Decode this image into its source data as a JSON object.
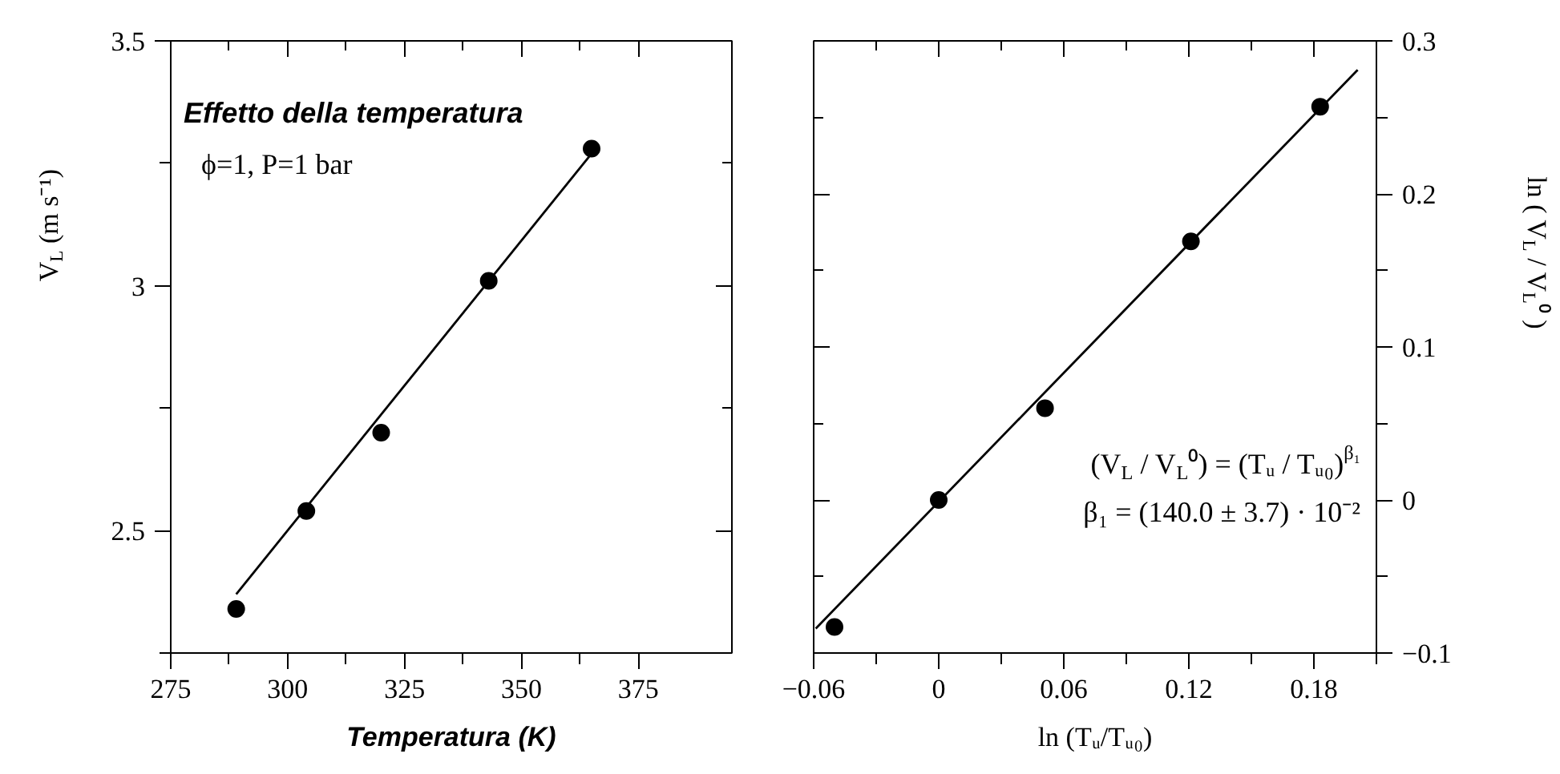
{
  "chart_data": [
    {
      "type": "scatter",
      "xlabel": "Temperatura (K)",
      "ylabel": "V$_{L}$ (m s⁻¹)",
      "annotations": [
        "Effetto della temperatura",
        "ϕ=1, P=1 bar"
      ],
      "xlim": [
        275,
        395
      ],
      "ylim": [
        2.25,
        3.5
      ],
      "xticks": [
        275,
        {
          "value": 287.5,
          "label": null
        },
        300,
        {
          "value": 312.5,
          "label": null
        },
        325,
        {
          "value": 337.5,
          "label": null
        },
        350,
        {
          "value": 362.5,
          "label": null
        },
        375
      ],
      "yticks": [
        {
          "value": 2.25,
          "label": null
        },
        2.5,
        {
          "value": 2.75,
          "label": null
        },
        3,
        {
          "value": 3.25,
          "label": null
        },
        3.5
      ],
      "series": [
        {
          "color": "#000000",
          "marker": "circle",
          "x": [
            289,
            304,
            320,
            343,
            365
          ],
          "values": [
            2.34,
            2.54,
            2.7,
            3.01,
            3.28
          ]
        },
        {
          "type": "line",
          "color": "#000000",
          "x": [
            289,
            365
          ],
          "values": [
            2.37,
            3.27
          ]
        }
      ]
    },
    {
      "type": "scatter",
      "xlabel": "ln (Tᵤ/Tᵤ₀)",
      "y2label": "ln ( V$_{L}$ / V$_{L}$⁰ )",
      "annotations": [
        "(V$_{L}$ / V$_{L}$⁰) = (Tᵤ / Tᵤ₀)$^{β₁}$",
        "β₁ = (140.0 ± 3.7) · 10⁻²"
      ],
      "xlim": [
        -0.06,
        0.21
      ],
      "y2lim": [
        -0.1,
        0.3
      ],
      "xticks": [
        {
          "value": -0.06,
          "label": "−0.06"
        },
        {
          "value": -0.03,
          "label": null
        },
        0,
        {
          "value": 0.03,
          "label": null
        },
        0.06,
        {
          "value": 0.09,
          "label": null
        },
        0.12,
        {
          "value": 0.15,
          "label": null
        },
        0.18,
        {
          "value": 0.21,
          "label": null
        }
      ],
      "y2ticks": [
        {
          "value": -0.1,
          "label": "−0.1"
        },
        {
          "value": -0.05,
          "label": null
        },
        0,
        {
          "value": 0.05,
          "label": null
        },
        0.1,
        {
          "value": 0.15,
          "label": null
        },
        0.2,
        {
          "value": 0.25,
          "label": null
        },
        0.3
      ],
      "series": [
        {
          "color": "#000000",
          "marker": "circle",
          "axis": "y2",
          "x": [
            -0.05,
            0,
            0.051,
            0.121,
            0.183
          ],
          "values": [
            -0.083,
            0,
            0.06,
            0.169,
            0.257
          ]
        },
        {
          "type": "line",
          "color": "#000000",
          "axis": "y2",
          "x": [
            -0.059,
            0.201
          ],
          "values": [
            -0.084,
            0.281
          ]
        }
      ]
    }
  ]
}
